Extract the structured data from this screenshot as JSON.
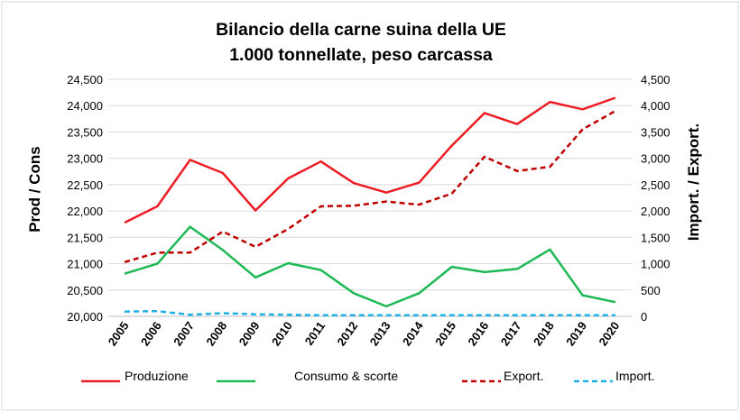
{
  "chart_data": {
    "type": "line",
    "title_line1": "Bilancio della carne suina della UE",
    "title_line2": "1.000 tonnellate, peso carcassa",
    "ylabel_left": "Prod / Cons",
    "ylabel_right": "Import. / Export.",
    "categories": [
      "2005",
      "2006",
      "2007",
      "2008",
      "2009",
      "2010",
      "2011",
      "2012",
      "2013",
      "2014",
      "2015",
      "2016",
      "2017",
      "2018",
      "2019",
      "2020"
    ],
    "ylim_left": [
      20000,
      24500
    ],
    "ylim_right": [
      0,
      4500
    ],
    "yticks_left": [
      "20,000",
      "20,500",
      "21,000",
      "21,500",
      "22,000",
      "22,500",
      "23,000",
      "23,500",
      "24,000",
      "24,500"
    ],
    "yticks_right": [
      "0",
      "500",
      "1,000",
      "1,500",
      "2,000",
      "2,500",
      "3,000",
      "3,500",
      "4,000",
      "4,500"
    ],
    "grid": true,
    "legend_position": "bottom",
    "series": [
      {
        "name": "Produzione",
        "axis": "left",
        "color": "#ee1c25",
        "dash": "solid",
        "values": [
          21780,
          22090,
          22970,
          22720,
          22010,
          22620,
          22940,
          22530,
          22350,
          22540,
          23240,
          23860,
          23650,
          24070,
          23930,
          24150
        ]
      },
      {
        "name": "Consumo & scorte",
        "axis": "left",
        "color": "#1db954",
        "dash": "solid",
        "values": [
          20810,
          21000,
          21700,
          21260,
          20740,
          21010,
          20880,
          20440,
          20190,
          20440,
          20940,
          20840,
          20900,
          21270,
          20400,
          20270
        ]
      },
      {
        "name": "Export.",
        "axis": "right",
        "color": "#c00000",
        "dash": "dash",
        "values": [
          1030,
          1210,
          1210,
          1610,
          1320,
          1660,
          2090,
          2100,
          2180,
          2120,
          2330,
          3030,
          2760,
          2840,
          3550,
          3900
        ]
      },
      {
        "name": "Import.",
        "axis": "right",
        "color": "#1fb0e8",
        "dash": "dash",
        "values": [
          90,
          100,
          30,
          60,
          40,
          30,
          20,
          20,
          20,
          20,
          20,
          20,
          20,
          20,
          20,
          20
        ]
      }
    ]
  }
}
